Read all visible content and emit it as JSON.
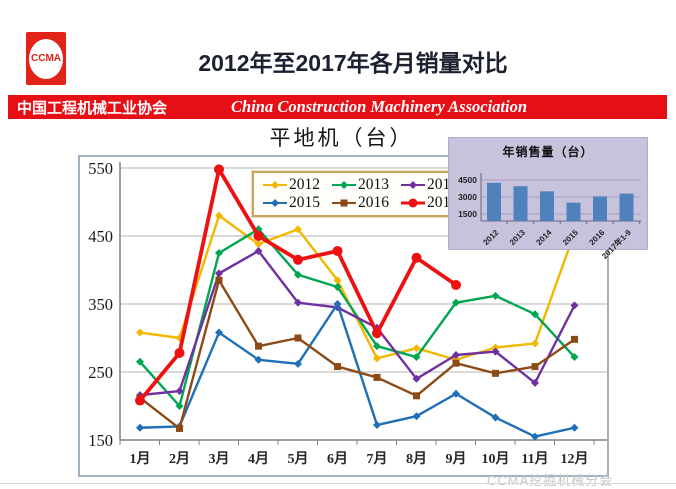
{
  "header": {
    "logo_text": "CCMA",
    "title": "2012年至2017年各月销量对比",
    "banner_cn": "中国工程机械工业协会",
    "banner_en": "China Construction Machinery Association"
  },
  "footer": {
    "watermark": "CCMA挖掘机械分会"
  },
  "colors": {
    "banner_red": "#e60f16",
    "inset_bg": "#c8c3dd",
    "inset_bar": "#4f81bd",
    "legend_border": "#c9a45c"
  },
  "chart_data": [
    {
      "id": "monthly-sales",
      "type": "line",
      "title": "平地机（台）",
      "categories": [
        "1月",
        "2月",
        "3月",
        "4月",
        "5月",
        "6月",
        "7月",
        "8月",
        "9月",
        "10月",
        "11月",
        "12月"
      ],
      "ylim": [
        150,
        570
      ],
      "yticks": [
        150,
        250,
        350,
        450,
        550
      ],
      "grid": true,
      "legend_position": "top-center",
      "series": [
        {
          "name": "2012",
          "color": "#f2b800",
          "marker": "diamond",
          "thick": false,
          "values": [
            308,
            300,
            480,
            438,
            460,
            385,
            270,
            285,
            268,
            286,
            292,
            455
          ]
        },
        {
          "name": "2013",
          "color": "#00a651",
          "marker": "diamond",
          "thick": false,
          "values": [
            265,
            200,
            425,
            460,
            393,
            375,
            288,
            272,
            352,
            362,
            335,
            272
          ]
        },
        {
          "name": "2014",
          "color": "#7030a0",
          "marker": "diamond",
          "thick": false,
          "values": [
            216,
            222,
            395,
            428,
            352,
            345,
            315,
            240,
            275,
            280,
            234,
            348
          ]
        },
        {
          "name": "2015",
          "color": "#1f6fb8",
          "marker": "diamond",
          "thick": false,
          "values": [
            168,
            170,
            308,
            268,
            262,
            350,
            172,
            185,
            218,
            183,
            155,
            168
          ]
        },
        {
          "name": "2016",
          "color": "#8c4a17",
          "marker": "square",
          "thick": false,
          "values": [
            212,
            167,
            385,
            288,
            300,
            258,
            242,
            215,
            263,
            248,
            258,
            298
          ]
        },
        {
          "name": "2017",
          "color": "#ee1111",
          "marker": "circle",
          "thick": true,
          "values": [
            208,
            278,
            548,
            450,
            415,
            428,
            307,
            418,
            378,
            null,
            null,
            null
          ]
        }
      ]
    },
    {
      "id": "annual-sales",
      "type": "bar",
      "title": "年销售量（台）",
      "categories": [
        "2012",
        "2013",
        "2014",
        "2015",
        "2016",
        "2017年1-9"
      ],
      "values": [
        4250,
        3950,
        3500,
        2500,
        3050,
        3300
      ],
      "yticks": [
        1500,
        3000,
        4500
      ],
      "ylim": [
        1000,
        4800
      ],
      "grid": true
    }
  ]
}
